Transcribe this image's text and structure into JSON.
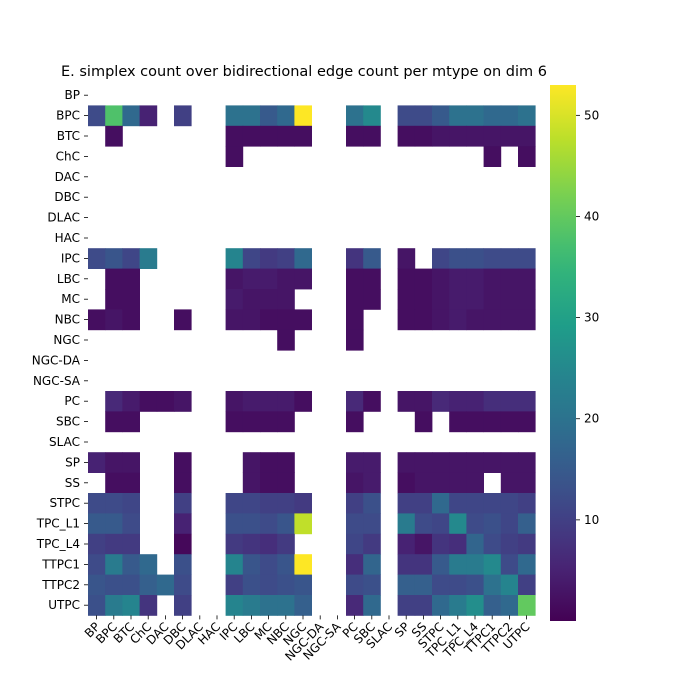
{
  "chart_data": {
    "type": "heatmap",
    "title": "E. simplex count over bidirectional edge count per mtype on dim 6",
    "xlabel": "",
    "ylabel": "",
    "rows": [
      "BP",
      "BPC",
      "BTC",
      "ChC",
      "DAC",
      "DBC",
      "DLAC",
      "HAC",
      "IPC",
      "LBC",
      "MC",
      "NBC",
      "NGC",
      "NGC-DA",
      "NGC-SA",
      "PC",
      "SBC",
      "SLAC",
      "SP",
      "SS",
      "STPC",
      "TPC_L1",
      "TPC_L4",
      "TTPC1",
      "TTPC2",
      "UTPC"
    ],
    "columns": [
      "BP",
      "BPC",
      "BTC",
      "ChC",
      "DAC",
      "DBC",
      "DLAC",
      "HAC",
      "IPC",
      "LBC",
      "MC",
      "NBC",
      "NGC",
      "NGC-DA",
      "NGC-SA",
      "PC",
      "SBC",
      "SLAC",
      "SP",
      "SS",
      "STPC",
      "TPC_L1",
      "TPC_L4",
      "TTPC1",
      "TTPC2",
      "UTPC"
    ],
    "values": [
      [
        null,
        null,
        null,
        null,
        null,
        null,
        null,
        null,
        null,
        null,
        null,
        null,
        null,
        null,
        null,
        null,
        null,
        null,
        null,
        null,
        null,
        null,
        null,
        null,
        null,
        null
      ],
      [
        12,
        38,
        18,
        5,
        null,
        10,
        null,
        null,
        20,
        20,
        15,
        18,
        53,
        null,
        null,
        20,
        25,
        null,
        12,
        12,
        15,
        20,
        20,
        18,
        18,
        20
      ],
      [
        null,
        2,
        null,
        null,
        null,
        null,
        null,
        null,
        2,
        2,
        2,
        2,
        2,
        null,
        null,
        2,
        2,
        null,
        2,
        2,
        3,
        3,
        3,
        3,
        3,
        3
      ],
      [
        null,
        null,
        null,
        null,
        null,
        null,
        null,
        null,
        2,
        null,
        null,
        null,
        null,
        null,
        null,
        null,
        null,
        null,
        null,
        null,
        null,
        null,
        null,
        2,
        null,
        2
      ],
      [
        null,
        null,
        null,
        null,
        null,
        null,
        null,
        null,
        null,
        null,
        null,
        null,
        null,
        null,
        null,
        null,
        null,
        null,
        null,
        null,
        null,
        null,
        null,
        null,
        null,
        null
      ],
      [
        null,
        null,
        null,
        null,
        null,
        null,
        null,
        null,
        null,
        null,
        null,
        null,
        null,
        null,
        null,
        null,
        null,
        null,
        null,
        null,
        null,
        null,
        null,
        null,
        null,
        null
      ],
      [
        null,
        null,
        null,
        null,
        null,
        null,
        null,
        null,
        null,
        null,
        null,
        null,
        null,
        null,
        null,
        null,
        null,
        null,
        null,
        null,
        null,
        null,
        null,
        null,
        null,
        null
      ],
      [
        null,
        null,
        null,
        null,
        null,
        null,
        null,
        null,
        null,
        null,
        null,
        null,
        null,
        null,
        null,
        null,
        null,
        null,
        null,
        null,
        null,
        null,
        null,
        null,
        null,
        null
      ],
      [
        12,
        14,
        11,
        22,
        null,
        null,
        null,
        null,
        24,
        11,
        9,
        10,
        18,
        null,
        null,
        8,
        15,
        null,
        3,
        null,
        11,
        13,
        13,
        12,
        12,
        12
      ],
      [
        null,
        2,
        2,
        null,
        null,
        null,
        null,
        null,
        3,
        4,
        4,
        3,
        3,
        null,
        null,
        2,
        2,
        null,
        2,
        2,
        3,
        4,
        4,
        3,
        3,
        3
      ],
      [
        null,
        2,
        2,
        null,
        null,
        null,
        null,
        null,
        4,
        3,
        3,
        3,
        null,
        null,
        null,
        2,
        2,
        null,
        2,
        2,
        3,
        4,
        4,
        3,
        3,
        3
      ],
      [
        2,
        3,
        2,
        null,
        null,
        2,
        null,
        null,
        3,
        3,
        2,
        2,
        2,
        null,
        null,
        2,
        null,
        null,
        2,
        2,
        3,
        4,
        3,
        3,
        3,
        3
      ],
      [
        null,
        null,
        null,
        null,
        null,
        null,
        null,
        null,
        null,
        null,
        null,
        2,
        null,
        null,
        null,
        2,
        null,
        null,
        null,
        null,
        null,
        null,
        null,
        null,
        null,
        null
      ],
      [
        null,
        null,
        null,
        null,
        null,
        null,
        null,
        null,
        null,
        null,
        null,
        null,
        null,
        null,
        null,
        null,
        null,
        null,
        null,
        null,
        null,
        null,
        null,
        null,
        null,
        null
      ],
      [
        null,
        null,
        null,
        null,
        null,
        null,
        null,
        null,
        null,
        null,
        null,
        null,
        null,
        null,
        null,
        null,
        null,
        null,
        null,
        null,
        null,
        null,
        null,
        null,
        null,
        null
      ],
      [
        null,
        6,
        4,
        2,
        2,
        3,
        null,
        null,
        3,
        4,
        4,
        4,
        2,
        null,
        null,
        6,
        2,
        null,
        3,
        3,
        6,
        5,
        5,
        7,
        7,
        7
      ],
      [
        null,
        2,
        2,
        null,
        null,
        null,
        null,
        null,
        2,
        2,
        2,
        2,
        null,
        null,
        null,
        2,
        null,
        null,
        null,
        2,
        null,
        2,
        2,
        2,
        2,
        2
      ],
      [
        null,
        null,
        null,
        null,
        null,
        null,
        null,
        null,
        null,
        null,
        null,
        null,
        null,
        null,
        null,
        null,
        null,
        null,
        null,
        null,
        null,
        null,
        null,
        null,
        null,
        null
      ],
      [
        5,
        3,
        3,
        null,
        null,
        2,
        null,
        null,
        null,
        3,
        2,
        2,
        null,
        null,
        null,
        4,
        4,
        null,
        3,
        3,
        3,
        3,
        3,
        3,
        3,
        3
      ],
      [
        null,
        2,
        2,
        null,
        null,
        2,
        null,
        null,
        null,
        3,
        2,
        2,
        null,
        null,
        null,
        3,
        4,
        null,
        2,
        3,
        3,
        3,
        3,
        null,
        3,
        3
      ],
      [
        12,
        12,
        11,
        null,
        null,
        10,
        null,
        null,
        11,
        11,
        10,
        10,
        9,
        null,
        null,
        10,
        13,
        null,
        10,
        10,
        18,
        11,
        11,
        11,
        11,
        10
      ],
      [
        15,
        15,
        12,
        null,
        null,
        5,
        null,
        null,
        13,
        13,
        12,
        14,
        48,
        null,
        null,
        12,
        12,
        null,
        22,
        12,
        11,
        25,
        12,
        13,
        11,
        16
      ],
      [
        10,
        9,
        9,
        null,
        null,
        1,
        null,
        null,
        9,
        8,
        7,
        9,
        null,
        null,
        null,
        11,
        9,
        null,
        5,
        3,
        8,
        7,
        17,
        12,
        10,
        9
      ],
      [
        12,
        22,
        15,
        18,
        null,
        13,
        null,
        null,
        24,
        14,
        12,
        14,
        53,
        null,
        null,
        7,
        17,
        null,
        8,
        8,
        15,
        22,
        22,
        25,
        12,
        18
      ],
      [
        14,
        13,
        13,
        16,
        18,
        12,
        null,
        null,
        10,
        13,
        12,
        13,
        14,
        null,
        null,
        12,
        13,
        null,
        16,
        16,
        12,
        12,
        13,
        20,
        24,
        10
      ],
      [
        13,
        22,
        24,
        8,
        null,
        10,
        null,
        null,
        24,
        22,
        20,
        20,
        16,
        null,
        null,
        6,
        18,
        null,
        10,
        10,
        18,
        22,
        26,
        16,
        18,
        40
      ]
    ],
    "colormap": "viridis",
    "vmin": 0,
    "vmax": 53,
    "colorbar_ticks": [
      10,
      20,
      30,
      40,
      50
    ],
    "colorbar_tick_labels": [
      "10",
      "20",
      "30",
      "40",
      "50"
    ],
    "missing_color": "#ffffff",
    "grid": false
  }
}
